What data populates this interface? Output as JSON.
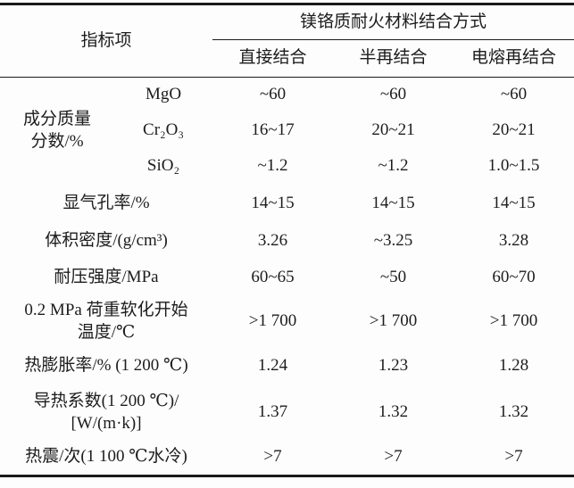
{
  "header": {
    "indicator": "指标项",
    "group": "镁铬质耐火材料结合方式",
    "cols": [
      "直接结合",
      "半再结合",
      "电熔再结合"
    ]
  },
  "composition": {
    "label": "成分质量\n分数/%",
    "rows": [
      {
        "name": "MgO",
        "values": [
          "~60",
          "~60",
          "~60"
        ]
      },
      {
        "name": "Cr₂O₃",
        "values": [
          "16~17",
          "20~21",
          "20~21"
        ]
      },
      {
        "name": "SiO₂",
        "values": [
          "~1.2",
          "~1.2",
          "1.0~1.5"
        ]
      }
    ]
  },
  "rows": [
    {
      "label": "显气孔率/%",
      "values": [
        "14~15",
        "14~15",
        "14~15"
      ]
    },
    {
      "label": "体积密度/(g/cm³)",
      "values": [
        "3.26",
        "~3.25",
        "3.28"
      ]
    },
    {
      "label": "耐压强度/MPa",
      "values": [
        "60~65",
        "~50",
        "60~70"
      ]
    },
    {
      "label": "0.2 MPa 荷重软化开始\n温度/℃",
      "values": [
        ">1 700",
        ">1 700",
        ">1 700"
      ]
    },
    {
      "label": "热膨胀率/% (1 200 ℃)",
      "values": [
        "1.24",
        "1.23",
        "1.28"
      ]
    },
    {
      "label": "导热系数(1 200 ℃)/\n[W/(m·k)]",
      "values": [
        "1.37",
        "1.32",
        "1.32"
      ]
    },
    {
      "label": "热震/次(1 100 ℃水冷)",
      "values": [
        ">7",
        ">7",
        ">7"
      ]
    }
  ],
  "colors": {
    "rule": "#1a1a1a",
    "text": "#1c1c1c",
    "background": "#fdfdfd"
  }
}
